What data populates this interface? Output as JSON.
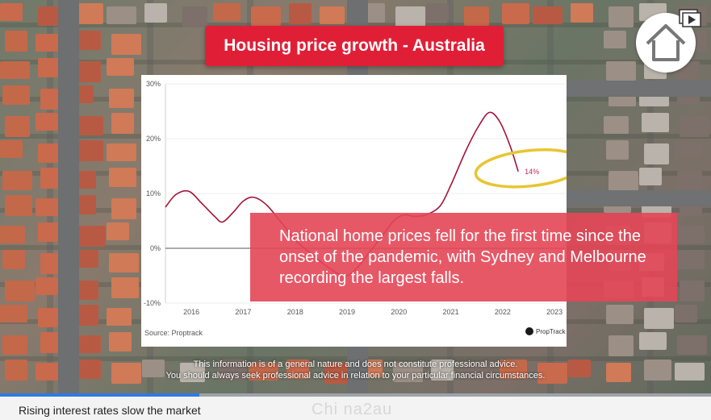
{
  "video": {
    "title": "Housing price growth - Australia",
    "callout_text": "National home prices fell for the first time since the onset of the pandemic, with Sydney and Melbourne recording the largest falls.",
    "disclaimer_line1": "This information is of a general nature and does not constitute professional advice.",
    "disclaimer_line2": "You should always seek professional advice in relation to your particular financial circumstances.",
    "progress": 0.28,
    "accent_color": "#e01f36",
    "progress_color": "#2f7ae5"
  },
  "chart_data": {
    "type": "line",
    "title": "",
    "xlabel": "",
    "ylabel": "",
    "y_ticks": [
      "30%",
      "20%",
      "10%",
      "0%",
      "-10%"
    ],
    "x_ticks": [
      "2016",
      "2017",
      "2018",
      "2019",
      "2020",
      "2021",
      "2022",
      "2023"
    ],
    "ylim": [
      -10,
      30
    ],
    "xlim": [
      2015.5,
      2023.2
    ],
    "grid": true,
    "annotation": "14%",
    "series": [
      {
        "color": "#a3123a",
        "points": [
          [
            2015.5,
            7.5
          ],
          [
            2015.7,
            9.8
          ],
          [
            2015.95,
            10.4
          ],
          [
            2016.2,
            8.2
          ],
          [
            2016.45,
            5.8
          ],
          [
            2016.6,
            4.8
          ],
          [
            2016.8,
            6.5
          ],
          [
            2017.0,
            8.6
          ],
          [
            2017.2,
            9.3
          ],
          [
            2017.45,
            7.9
          ],
          [
            2017.75,
            4.5
          ],
          [
            2018.0,
            1.5
          ],
          [
            2018.25,
            -0.5
          ],
          [
            2018.5,
            -2.5
          ],
          [
            2018.8,
            -4.5
          ],
          [
            2019.0,
            -5.0
          ],
          [
            2019.2,
            -3.5
          ],
          [
            2019.45,
            -0.5
          ],
          [
            2019.7,
            2.5
          ],
          [
            2019.9,
            5.0
          ],
          [
            2020.1,
            6.1
          ],
          [
            2020.3,
            5.8
          ],
          [
            2020.55,
            6.2
          ],
          [
            2020.8,
            7.8
          ],
          [
            2021.0,
            11.5
          ],
          [
            2021.3,
            18.0
          ],
          [
            2021.55,
            22.5
          ],
          [
            2021.75,
            24.8
          ],
          [
            2021.95,
            23.0
          ],
          [
            2022.15,
            18.5
          ],
          [
            2022.3,
            14.0
          ]
        ]
      }
    ]
  },
  "source": "Source: Proptrack",
  "logo_text": "PropTrack",
  "caption": "Rising interest rates slow the market",
  "watermark": "Chi na2au",
  "icons": {
    "home": "home-icon",
    "playlist": "playlist-icon",
    "logo": "proptrack-logo-icon"
  }
}
